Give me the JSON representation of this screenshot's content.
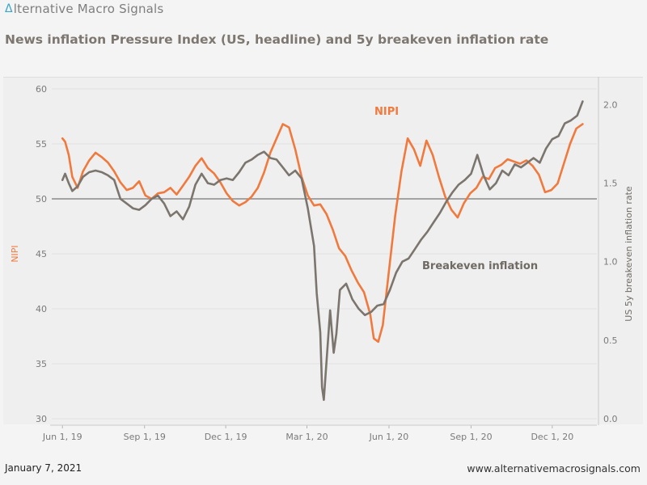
{
  "brand": {
    "logo_glyph": "Δ",
    "name": "lternative Macro Signals"
  },
  "title": "News inflation Pressure Index (US, headline) and 5y breakeven inflation rate",
  "footer": {
    "date": "January 7, 2021",
    "url": "www.alternativemacrosignals.com"
  },
  "colors": {
    "nipi": "#f07a3e",
    "breakeven": "#7b756e",
    "reference": "#8a8a8a",
    "brand_accent": "#3aa6c9"
  },
  "chart_data": {
    "type": "line",
    "title": "News inflation Pressure Index (US, headline) and 5y breakeven inflation rate",
    "x_range": [
      "2019-05-20",
      "2021-01-20"
    ],
    "x_ticks": [
      {
        "date": "2019-06-01",
        "label": "Jun 1, 19"
      },
      {
        "date": "2019-09-01",
        "label": "Sep 1, 19"
      },
      {
        "date": "2019-12-01",
        "label": "Dec 1, 19"
      },
      {
        "date": "2020-03-01",
        "label": "Mar 1, 20"
      },
      {
        "date": "2020-06-01",
        "label": "Jun 1, 20"
      },
      {
        "date": "2020-09-01",
        "label": "Sep 1, 20"
      },
      {
        "date": "2020-12-01",
        "label": "Dec 1, 20"
      }
    ],
    "y_left": {
      "label": "NIPI",
      "range": [
        30,
        60
      ],
      "ticks": [
        30,
        35,
        40,
        45,
        50,
        55,
        60
      ]
    },
    "y_right": {
      "label": "US 5y breakeven inflation rate",
      "range": [
        0.0,
        2.1
      ],
      "ticks": [
        "0.0",
        "0.5",
        "1.0",
        "1.5",
        "2.0"
      ]
    },
    "reference_line": {
      "axis": "left",
      "value": 50
    },
    "series": [
      {
        "name": "NIPI",
        "axis": "left",
        "points": [
          [
            "2019-06-01",
            55.5
          ],
          [
            "2019-06-04",
            55.2
          ],
          [
            "2019-06-08",
            54.0
          ],
          [
            "2019-06-12",
            52.0
          ],
          [
            "2019-06-18",
            51.0
          ],
          [
            "2019-06-24",
            52.5
          ],
          [
            "2019-07-01",
            53.5
          ],
          [
            "2019-07-08",
            54.2
          ],
          [
            "2019-07-15",
            53.8
          ],
          [
            "2019-07-22",
            53.3
          ],
          [
            "2019-07-29",
            52.5
          ],
          [
            "2019-08-05",
            51.5
          ],
          [
            "2019-08-12",
            50.8
          ],
          [
            "2019-08-19",
            51.0
          ],
          [
            "2019-08-26",
            51.6
          ],
          [
            "2019-09-02",
            50.3
          ],
          [
            "2019-09-09",
            50.0
          ],
          [
            "2019-09-16",
            50.5
          ],
          [
            "2019-09-23",
            50.6
          ],
          [
            "2019-09-30",
            51.0
          ],
          [
            "2019-10-07",
            50.4
          ],
          [
            "2019-10-14",
            51.2
          ],
          [
            "2019-10-21",
            52.0
          ],
          [
            "2019-10-28",
            53.0
          ],
          [
            "2019-11-04",
            53.7
          ],
          [
            "2019-11-11",
            52.8
          ],
          [
            "2019-11-18",
            52.3
          ],
          [
            "2019-11-25",
            51.5
          ],
          [
            "2019-12-02",
            50.5
          ],
          [
            "2019-12-09",
            49.8
          ],
          [
            "2019-12-16",
            49.4
          ],
          [
            "2019-12-23",
            49.7
          ],
          [
            "2019-12-30",
            50.2
          ],
          [
            "2020-01-06",
            51.0
          ],
          [
            "2020-01-13",
            52.4
          ],
          [
            "2020-01-20",
            54.2
          ],
          [
            "2020-01-27",
            55.5
          ],
          [
            "2020-02-03",
            56.8
          ],
          [
            "2020-02-10",
            56.5
          ],
          [
            "2020-02-17",
            54.5
          ],
          [
            "2020-02-24",
            52.0
          ],
          [
            "2020-03-02",
            50.3
          ],
          [
            "2020-03-09",
            49.4
          ],
          [
            "2020-03-16",
            49.5
          ],
          [
            "2020-03-23",
            48.6
          ],
          [
            "2020-03-30",
            47.2
          ],
          [
            "2020-04-06",
            45.5
          ],
          [
            "2020-04-13",
            44.8
          ],
          [
            "2020-04-20",
            43.5
          ],
          [
            "2020-04-27",
            42.4
          ],
          [
            "2020-05-04",
            41.5
          ],
          [
            "2020-05-11",
            39.5
          ],
          [
            "2020-05-15",
            37.3
          ],
          [
            "2020-05-20",
            37.0
          ],
          [
            "2020-05-25",
            38.5
          ],
          [
            "2020-06-01",
            43.5
          ],
          [
            "2020-06-08",
            48.5
          ],
          [
            "2020-06-15",
            52.5
          ],
          [
            "2020-06-22",
            55.5
          ],
          [
            "2020-06-29",
            54.5
          ],
          [
            "2020-07-06",
            53.0
          ],
          [
            "2020-07-13",
            55.3
          ],
          [
            "2020-07-20",
            54.0
          ],
          [
            "2020-07-27",
            52.0
          ],
          [
            "2020-08-03",
            50.2
          ],
          [
            "2020-08-10",
            49.0
          ],
          [
            "2020-08-17",
            48.3
          ],
          [
            "2020-08-24",
            49.6
          ],
          [
            "2020-08-31",
            50.5
          ],
          [
            "2020-09-07",
            51.0
          ],
          [
            "2020-09-14",
            52.0
          ],
          [
            "2020-09-21",
            51.8
          ],
          [
            "2020-09-28",
            52.8
          ],
          [
            "2020-10-05",
            53.1
          ],
          [
            "2020-10-12",
            53.6
          ],
          [
            "2020-10-19",
            53.4
          ],
          [
            "2020-10-26",
            53.2
          ],
          [
            "2020-11-02",
            53.5
          ],
          [
            "2020-11-09",
            53.0
          ],
          [
            "2020-11-16",
            52.2
          ],
          [
            "2020-11-23",
            50.6
          ],
          [
            "2020-11-30",
            50.8
          ],
          [
            "2020-12-07",
            51.4
          ],
          [
            "2020-12-14",
            53.2
          ],
          [
            "2020-12-21",
            55.0
          ],
          [
            "2020-12-28",
            56.4
          ],
          [
            "2021-01-04",
            56.8
          ]
        ],
        "annotation": "NIPI"
      },
      {
        "name": "Breakeven inflation",
        "axis": "right",
        "points": [
          [
            "2019-06-01",
            1.52
          ],
          [
            "2019-06-04",
            1.56
          ],
          [
            "2019-06-08",
            1.5
          ],
          [
            "2019-06-12",
            1.45
          ],
          [
            "2019-06-18",
            1.48
          ],
          [
            "2019-06-24",
            1.54
          ],
          [
            "2019-07-01",
            1.57
          ],
          [
            "2019-07-08",
            1.58
          ],
          [
            "2019-07-15",
            1.57
          ],
          [
            "2019-07-22",
            1.55
          ],
          [
            "2019-07-29",
            1.52
          ],
          [
            "2019-08-05",
            1.4
          ],
          [
            "2019-08-12",
            1.37
          ],
          [
            "2019-08-19",
            1.34
          ],
          [
            "2019-08-26",
            1.33
          ],
          [
            "2019-09-02",
            1.36
          ],
          [
            "2019-09-09",
            1.4
          ],
          [
            "2019-09-16",
            1.42
          ],
          [
            "2019-09-23",
            1.37
          ],
          [
            "2019-09-30",
            1.29
          ],
          [
            "2019-10-07",
            1.32
          ],
          [
            "2019-10-14",
            1.27
          ],
          [
            "2019-10-21",
            1.35
          ],
          [
            "2019-10-28",
            1.49
          ],
          [
            "2019-11-04",
            1.56
          ],
          [
            "2019-11-11",
            1.5
          ],
          [
            "2019-11-18",
            1.49
          ],
          [
            "2019-11-25",
            1.52
          ],
          [
            "2019-12-02",
            1.53
          ],
          [
            "2019-12-09",
            1.52
          ],
          [
            "2019-12-16",
            1.57
          ],
          [
            "2019-12-23",
            1.63
          ],
          [
            "2019-12-30",
            1.65
          ],
          [
            "2020-01-06",
            1.68
          ],
          [
            "2020-01-13",
            1.7
          ],
          [
            "2020-01-20",
            1.66
          ],
          [
            "2020-01-27",
            1.65
          ],
          [
            "2020-02-03",
            1.6
          ],
          [
            "2020-02-10",
            1.55
          ],
          [
            "2020-02-17",
            1.58
          ],
          [
            "2020-02-24",
            1.53
          ],
          [
            "2020-03-02",
            1.34
          ],
          [
            "2020-03-09",
            1.1
          ],
          [
            "2020-03-12",
            0.8
          ],
          [
            "2020-03-16",
            0.55
          ],
          [
            "2020-03-18",
            0.2
          ],
          [
            "2020-03-20",
            0.12
          ],
          [
            "2020-03-24",
            0.45
          ],
          [
            "2020-03-27",
            0.69
          ],
          [
            "2020-03-31",
            0.42
          ],
          [
            "2020-04-03",
            0.54
          ],
          [
            "2020-04-07",
            0.82
          ],
          [
            "2020-04-14",
            0.86
          ],
          [
            "2020-04-21",
            0.76
          ],
          [
            "2020-04-28",
            0.7
          ],
          [
            "2020-05-05",
            0.66
          ],
          [
            "2020-05-12",
            0.68
          ],
          [
            "2020-05-19",
            0.72
          ],
          [
            "2020-05-26",
            0.73
          ],
          [
            "2020-06-02",
            0.82
          ],
          [
            "2020-06-09",
            0.93
          ],
          [
            "2020-06-16",
            1.0
          ],
          [
            "2020-06-23",
            1.02
          ],
          [
            "2020-06-30",
            1.08
          ],
          [
            "2020-07-07",
            1.14
          ],
          [
            "2020-07-14",
            1.19
          ],
          [
            "2020-07-21",
            1.25
          ],
          [
            "2020-07-28",
            1.31
          ],
          [
            "2020-08-04",
            1.38
          ],
          [
            "2020-08-11",
            1.44
          ],
          [
            "2020-08-18",
            1.49
          ],
          [
            "2020-08-25",
            1.52
          ],
          [
            "2020-09-01",
            1.56
          ],
          [
            "2020-09-08",
            1.68
          ],
          [
            "2020-09-15",
            1.55
          ],
          [
            "2020-09-22",
            1.46
          ],
          [
            "2020-09-29",
            1.5
          ],
          [
            "2020-10-06",
            1.58
          ],
          [
            "2020-10-13",
            1.55
          ],
          [
            "2020-10-20",
            1.62
          ],
          [
            "2020-10-27",
            1.6
          ],
          [
            "2020-11-03",
            1.63
          ],
          [
            "2020-11-10",
            1.66
          ],
          [
            "2020-11-17",
            1.63
          ],
          [
            "2020-11-24",
            1.72
          ],
          [
            "2020-12-01",
            1.78
          ],
          [
            "2020-12-08",
            1.8
          ],
          [
            "2020-12-15",
            1.88
          ],
          [
            "2020-12-22",
            1.9
          ],
          [
            "2020-12-29",
            1.93
          ],
          [
            "2021-01-04",
            2.02
          ]
        ],
        "annotation": "Breakeven inflation"
      }
    ]
  }
}
